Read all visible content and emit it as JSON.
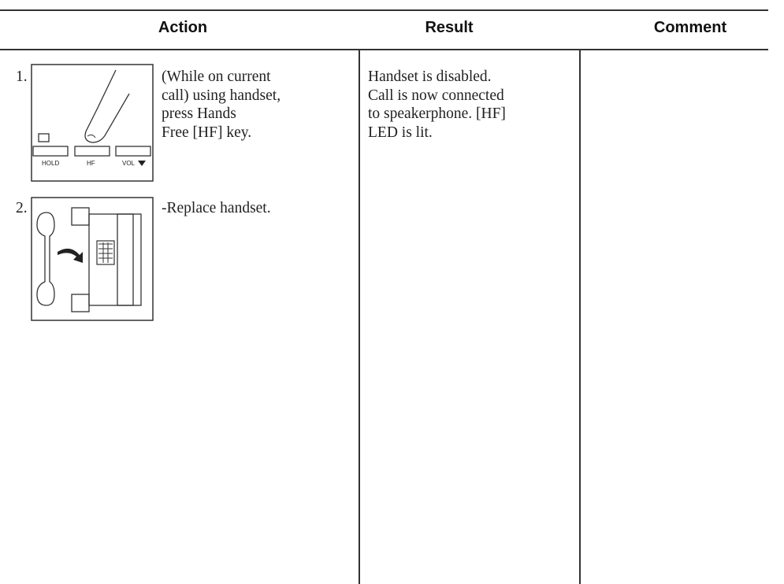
{
  "table": {
    "columns": [
      "Action",
      "Result",
      "Comment"
    ],
    "rows": [
      {
        "number": "1.",
        "action": [
          "(While on current",
          "call) using handset,",
          "press Hands",
          "Free [HF] key."
        ],
        "icon_labels": [
          "HOLD",
          "HF",
          "VOL"
        ],
        "result": [
          "Handset is disabled.",
          "Call is now connected",
          "to speakerphone. [HF]",
          "LED is lit."
        ]
      },
      {
        "number": "2.",
        "action": [
          "-Replace handset."
        ]
      }
    ]
  }
}
